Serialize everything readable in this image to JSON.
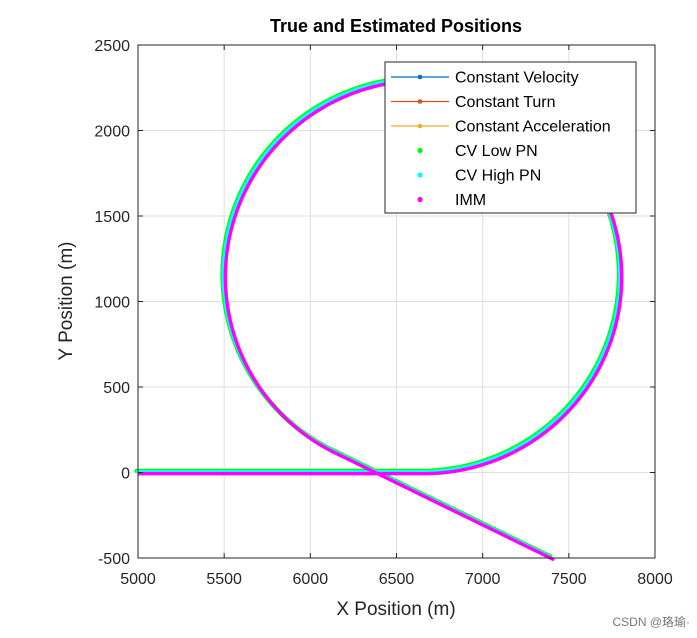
{
  "chart_data": {
    "type": "line",
    "title": "True and Estimated Positions",
    "xlabel": "X Position (m)",
    "ylabel": "Y Position (m)",
    "xlim": [
      5000,
      8000
    ],
    "ylim": [
      -500,
      2500
    ],
    "xticks": [
      5000,
      5500,
      6000,
      6500,
      7000,
      7500,
      8000
    ],
    "yticks": [
      -500,
      0,
      500,
      1000,
      1500,
      2000,
      2500
    ],
    "grid": true,
    "legend_position": "top-right",
    "series": [
      {
        "name": "Constant Velocity",
        "color": "#0072BD",
        "style": "line-marker"
      },
      {
        "name": "Constant Turn",
        "color": "#D95319",
        "style": "line-marker"
      },
      {
        "name": "Constant Acceleration",
        "color": "#EDB120",
        "style": "line-marker"
      },
      {
        "name": "CV Low PN",
        "color": "#00FF00",
        "style": "marker"
      },
      {
        "name": "CV High PN",
        "color": "#00FFFF",
        "style": "marker"
      },
      {
        "name": "IMM",
        "color": "#FF00FF",
        "style": "marker"
      }
    ],
    "trajectory": {
      "straight_start": [
        5000,
        0
      ],
      "turn_start": [
        6650,
        0
      ],
      "circle_center": [
        6650,
        1150
      ],
      "radius": 1150,
      "turn_end": [
        6120,
        130
      ],
      "diagonal_end": [
        7400,
        -500
      ]
    }
  },
  "watermark": "CSDN @珞瑜·"
}
